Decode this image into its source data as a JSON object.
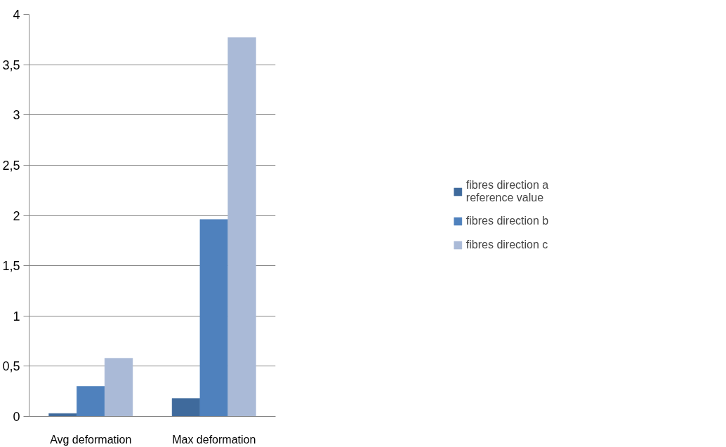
{
  "chart_data": {
    "type": "bar",
    "categories": [
      "Avg deformation",
      "Max deformation"
    ],
    "series": [
      {
        "name": "fibres direction a\nreference value",
        "color": "#3f6a9c",
        "values": [
          0.03,
          0.18
        ]
      },
      {
        "name": "fibres direction b",
        "color": "#4f81bd",
        "values": [
          0.3,
          1.96
        ]
      },
      {
        "name": "fibres direction c",
        "color": "#aabad7",
        "values": [
          0.58,
          3.77
        ]
      }
    ],
    "ylim": [
      0,
      4
    ],
    "yticks": [
      0,
      {
        "value": 0.5,
        "label": "0,5"
      },
      1,
      {
        "value": 1.5,
        "label": "1,5"
      },
      2,
      {
        "value": 2.5,
        "label": "2,5"
      },
      3,
      {
        "value": 3.5,
        "label": "3,5"
      },
      4
    ],
    "grid": "y",
    "legend": "right"
  }
}
